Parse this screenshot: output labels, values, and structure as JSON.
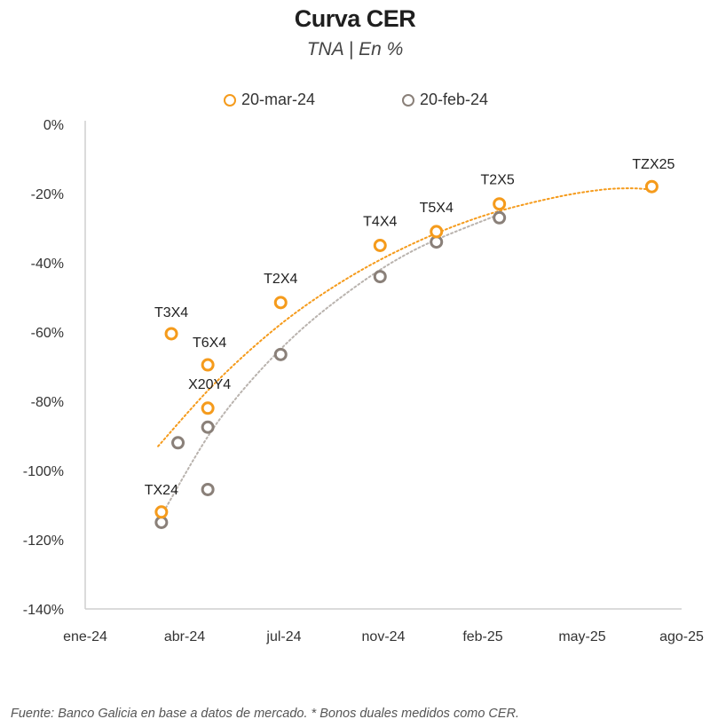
{
  "chart_data": {
    "type": "scatter",
    "title": "Curva CER",
    "subtitle": "TNA | En %",
    "xlabel": "",
    "ylabel": "",
    "x_ticks": [
      "ene-24",
      "abr-24",
      "jul-24",
      "nov-24",
      "feb-25",
      "may-25",
      "ago-25"
    ],
    "x_tick_values": [
      0,
      3,
      6,
      9,
      12,
      15,
      18
    ],
    "xlim": [
      0,
      18
    ],
    "ylim": [
      -140,
      0
    ],
    "y_ticks": [
      0,
      -20,
      -40,
      -60,
      -80,
      -100,
      -120,
      -140
    ],
    "y_tick_labels": [
      "0%",
      "-20%",
      "-40%",
      "-60%",
      "-80%",
      "-100%",
      "-120%",
      "-140%"
    ],
    "grid": false,
    "legend_position": "top",
    "series": [
      {
        "name": "20-mar-24",
        "color": "#F59B1C",
        "points": [
          {
            "label": "TX24",
            "x": 2.3,
            "y": -112
          },
          {
            "label": "T3X4",
            "x": 2.6,
            "y": -60.5
          },
          {
            "label": "T6X4",
            "x": 3.7,
            "y": -69.5
          },
          {
            "label": "X20Y4",
            "x": 3.7,
            "y": -82
          },
          {
            "label": "T2X4",
            "x": 5.9,
            "y": -51.5
          },
          {
            "label": "T4X4",
            "x": 8.9,
            "y": -35
          },
          {
            "label": "T5X4",
            "x": 10.6,
            "y": -31
          },
          {
            "label": "T2X5",
            "x": 12.5,
            "y": -23
          },
          {
            "label": "TZX25",
            "x": 17.1,
            "y": -18
          }
        ],
        "trendline": {
          "x": [
            2.2,
            4,
            6,
            8,
            10,
            12,
            14,
            15.5,
            16.5,
            17.2
          ],
          "y": [
            -93,
            -74,
            -57,
            -44,
            -34,
            -26.5,
            -21.5,
            -19,
            -18.5,
            -19
          ]
        }
      },
      {
        "name": "20-feb-24",
        "color": "#8A8079",
        "points": [
          {
            "x": 2.3,
            "y": -115
          },
          {
            "x": 2.8,
            "y": -92
          },
          {
            "x": 3.7,
            "y": -87.5
          },
          {
            "x": 3.7,
            "y": -105.5
          },
          {
            "x": 5.9,
            "y": -66.5
          },
          {
            "x": 8.9,
            "y": -44
          },
          {
            "x": 10.6,
            "y": -34
          },
          {
            "x": 12.5,
            "y": -27
          }
        ],
        "trendline": {
          "x": [
            2.3,
            4,
            6,
            8,
            10,
            12.5
          ],
          "y": [
            -113,
            -86,
            -64,
            -48,
            -36,
            -26
          ]
        }
      }
    ],
    "footnote": "Fuente: Banco Galicia en base a datos de mercado. * Bonos duales medidos como CER."
  }
}
